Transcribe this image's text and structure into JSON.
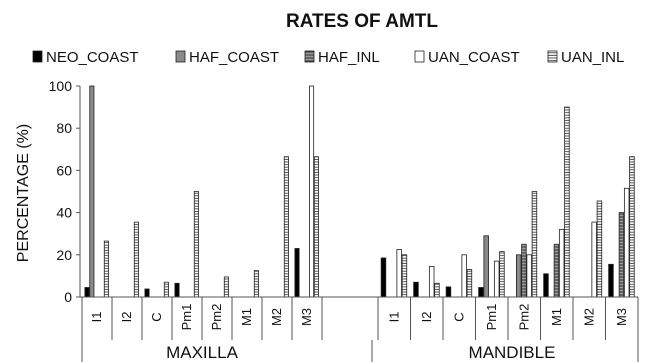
{
  "chart_data": {
    "type": "bar",
    "title": "RATES OF AMTL",
    "ylabel": "PERCENTAGE  (%)",
    "ylim": [
      0,
      100
    ],
    "yticks": [
      0,
      20,
      40,
      60,
      80,
      100
    ],
    "grid": false,
    "legend_position": "top",
    "groups": [
      {
        "name": "MAXILLA",
        "categories": [
          "I1",
          "I2",
          "C",
          "Pm1",
          "Pm2",
          "M1",
          "M2",
          "M3"
        ]
      },
      {
        "name": "MANDIBLE",
        "categories": [
          "I1",
          "I2",
          "C",
          "Pm1",
          "Pm2",
          "M1",
          "M2",
          "M3"
        ]
      }
    ],
    "series": [
      {
        "name": "NEO_COAST",
        "style": "black",
        "values": [
          4.5,
          0,
          3.8,
          6.5,
          0,
          0,
          0,
          23,
          18.5,
          7,
          4.8,
          4.5,
          0,
          11,
          0,
          15.5
        ]
      },
      {
        "name": "HAF_COAST",
        "style": "gray",
        "values": [
          100,
          0,
          0,
          0,
          0,
          0,
          0,
          0,
          0,
          0,
          0,
          29,
          20,
          0,
          0,
          0
        ]
      },
      {
        "name": "HAF_INL",
        "style": "gray-hatch",
        "values": [
          0,
          0,
          0,
          0,
          0,
          0,
          0,
          0,
          0,
          0,
          0,
          0,
          25,
          25,
          0,
          40
        ]
      },
      {
        "name": "UAN_COAST",
        "style": "white",
        "values": [
          0,
          0,
          0,
          0,
          0,
          0,
          0,
          100,
          22.5,
          14.5,
          20,
          17,
          20,
          32,
          35.5,
          51.5
        ]
      },
      {
        "name": "UAN_INL",
        "style": "white-hatch",
        "values": [
          26.5,
          35.5,
          7,
          50,
          9.5,
          12.5,
          66.5,
          66.5,
          20,
          6.5,
          13,
          21.5,
          50,
          90,
          45.5,
          66.5
        ]
      }
    ],
    "colors": {
      "black": "#000000",
      "gray": "#8a8a8a",
      "hatch_line": "#444444",
      "white": "#ffffff",
      "outline": "#222222"
    }
  }
}
